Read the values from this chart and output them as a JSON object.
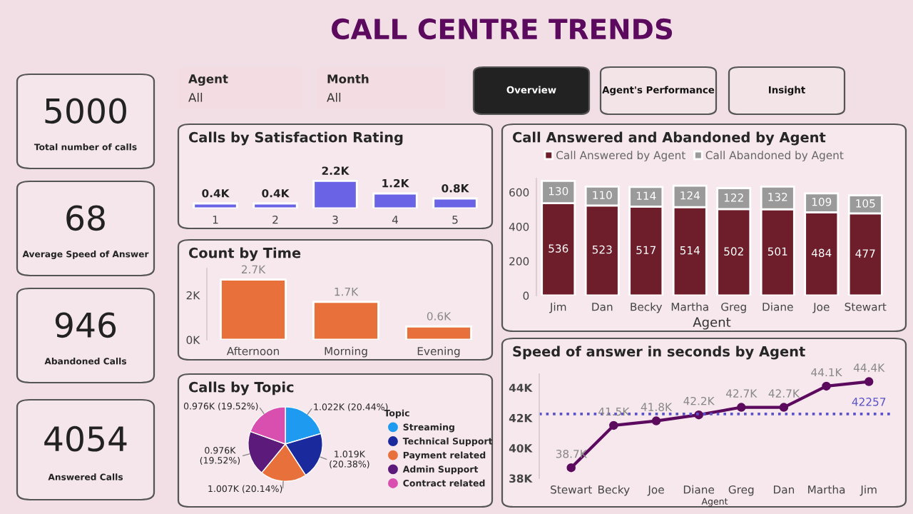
{
  "chart_data": [
    {
      "type": "other",
      "title": "CALL CENTRE TRENDS",
      "annotations": [
        "Agent",
        "All",
        "Month",
        "All",
        "Overview",
        "Agent's Performance",
        "Insight"
      ]
    },
    {
      "type": "other",
      "annotations": [
        "5000",
        "Total number of calls",
        "68",
        "Average Speed of Answer",
        "946",
        "Abandoned Calls",
        "4054",
        "Answered Calls"
      ]
    },
    {
      "type": "bar",
      "title": "Calls by Satisfaction Rating",
      "categories": [
        "1",
        "2",
        "3",
        "4",
        "5"
      ],
      "values": [
        0.4,
        0.4,
        2.2,
        1.2,
        0.8
      ],
      "value_labels": [
        "0.4K",
        "0.4K",
        "2.2K",
        "1.2K",
        "0.8K"
      ],
      "color": "#6b63e6",
      "tick_labels": "x",
      "grid": false
    },
    {
      "type": "bar",
      "title": "Count by Time",
      "categories": [
        "Afternoon",
        "Morning",
        "Evening"
      ],
      "values": [
        2.7,
        1.7,
        0.6
      ],
      "value_labels": [
        "2.7K",
        "1.7K",
        "0.6K"
      ],
      "color": "#e8703a",
      "ylim": [
        0,
        3.2
      ],
      "yticks": [
        {
          "value": 0,
          "label": "0K"
        },
        {
          "value": 2,
          "label": "2K"
        }
      ],
      "grid": false
    },
    {
      "type": "pie",
      "title": "Calls by Topic",
      "legend_title": "Topic",
      "legend": "right",
      "categories": [
        "Streaming",
        "Technical Support",
        "Payment related",
        "Admin Support",
        "Contract related"
      ],
      "values": [
        20.44,
        20.38,
        20.14,
        19.52,
        19.52
      ],
      "value_labels": [
        "1.022K (20.44%)",
        "1.019K (20.38%)",
        "1.007K (20.14%)",
        "0.976K (19.52%)",
        "0.976K (19.52%)"
      ],
      "colors": [
        "#1e9bf0",
        "#1a2a9c",
        "#e8703a",
        "#5c1a7a",
        "#d94fb0"
      ]
    },
    {
      "type": "bar",
      "title": "Call Answered and Abandoned by Agent",
      "stacked": true,
      "xlabel": "Agent",
      "legend": "top",
      "data_labels": true,
      "grid": false,
      "categories": [
        "Jim",
        "Dan",
        "Becky",
        "Martha",
        "Greg",
        "Diane",
        "Joe",
        "Stewart"
      ],
      "ylim": [
        0,
        680
      ],
      "yticks": [
        0,
        200,
        400,
        600
      ],
      "series": [
        {
          "name": "Call Answered by Agent",
          "color": "#6e1e2a",
          "values": [
            536,
            523,
            517,
            514,
            502,
            501,
            484,
            477
          ]
        },
        {
          "name": "Call Abandoned by Agent",
          "color": "#9a9a9a",
          "values": [
            130,
            110,
            114,
            124,
            122,
            132,
            109,
            105
          ]
        }
      ]
    },
    {
      "type": "line",
      "title": "Speed of answer in seconds by Agent",
      "xlabel": "Agent",
      "marker": "circle",
      "line_style": "solid",
      "grid": false,
      "categories": [
        "Stewart",
        "Becky",
        "Joe",
        "Diane",
        "Greg",
        "Dan",
        "Martha",
        "Jim"
      ],
      "values": [
        38.7,
        41.5,
        41.8,
        42.2,
        42.7,
        42.7,
        44.1,
        44.4
      ],
      "value_labels": [
        "38.7K",
        "41.5K",
        "41.8K",
        "42.2K",
        "42.7K",
        "42.7K",
        "44.1K",
        "44.4K"
      ],
      "color": "#5c0a5e",
      "ylim": [
        38,
        44.9
      ],
      "yticks": [
        {
          "value": 38,
          "label": "38K"
        },
        {
          "value": 40,
          "label": "40K"
        },
        {
          "value": 42,
          "label": "42K"
        },
        {
          "value": 44,
          "label": "44K"
        }
      ],
      "ref_lines": [
        {
          "axis": "y",
          "value": 42.257,
          "label": "42257",
          "color": "#5a52c8",
          "line_style": "dotted"
        }
      ]
    }
  ]
}
